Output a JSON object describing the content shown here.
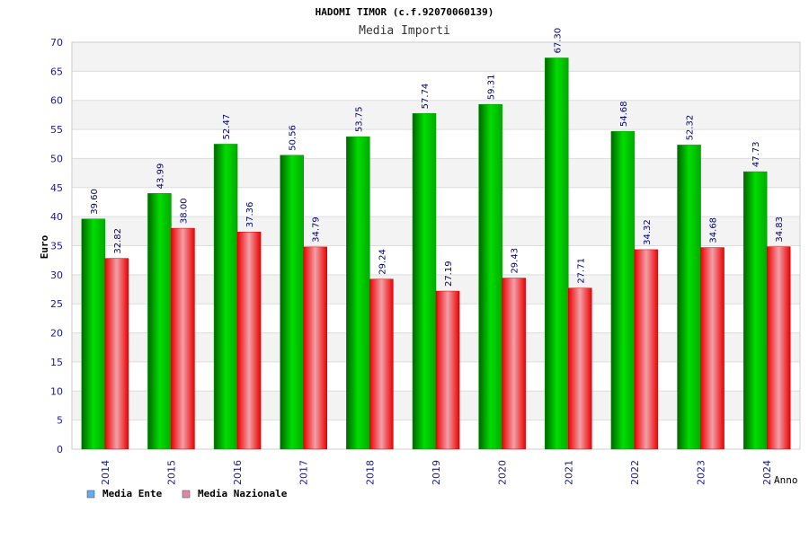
{
  "header": {
    "title": "HADOMI TIMOR (c.f.92070060139)",
    "subtitle": "Media Importi"
  },
  "chart_data": {
    "type": "bar",
    "title": "HADOMI TIMOR (c.f.92070060139)",
    "subtitle": "Media Importi",
    "xlabel": "Anno",
    "ylabel": "Euro",
    "categories": [
      "2014",
      "2015",
      "2016",
      "2017",
      "2018",
      "2019",
      "2020",
      "2021",
      "2022",
      "2023",
      "2024"
    ],
    "series": [
      {
        "name": "Media Ente",
        "values": [
          39.6,
          43.99,
          52.47,
          50.56,
          53.75,
          57.74,
          59.31,
          67.3,
          54.68,
          52.32,
          47.73
        ],
        "labels": [
          "39.60",
          "43.99",
          "52.47",
          "50.56",
          "53.75",
          "57.74",
          "59.31",
          "67.30",
          "54.68",
          "52.32",
          "47.73"
        ],
        "color": "#00cc00",
        "legend_color": "#66aaee"
      },
      {
        "name": "Media Nazionale",
        "values": [
          32.82,
          38.0,
          37.36,
          34.79,
          29.24,
          27.19,
          29.43,
          27.71,
          34.32,
          34.68,
          34.83
        ],
        "labels": [
          "32.82",
          "38.00",
          "37.36",
          "34.79",
          "29.24",
          "27.19",
          "29.43",
          "27.71",
          "34.32",
          "34.68",
          "34.83"
        ],
        "color": "#ff0000",
        "legend_color": "#dd88aa"
      }
    ],
    "ylim": [
      0,
      70
    ],
    "yticks": [
      "0",
      "5",
      "10",
      "15",
      "20",
      "25",
      "30",
      "35",
      "40",
      "45",
      "50",
      "55",
      "60",
      "65",
      "70"
    ],
    "grid": true,
    "legend_position": "bottom-left",
    "colors": {
      "axis_text": "#1a1a99",
      "label_text": "#000077",
      "band": "#f3f3f3",
      "grid": "#dddddd"
    }
  }
}
